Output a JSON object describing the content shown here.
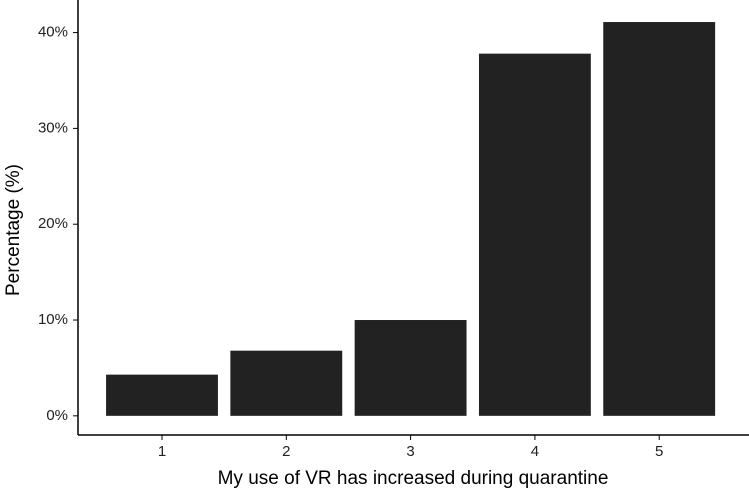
{
  "chart_data": {
    "type": "bar",
    "x_label": "My use of VR has increased during quarantine",
    "y_label": "Percentage (%)",
    "categories": [
      "1",
      "2",
      "3",
      "4",
      "5"
    ],
    "values": [
      4.3,
      6.8,
      10.0,
      37.8,
      41.1
    ],
    "color": "#222222",
    "ylim": [
      -2,
      43.4
    ],
    "yticks": [
      {
        "value": 0,
        "label": "0%"
      },
      {
        "value": 10,
        "label": "10%"
      },
      {
        "value": 20,
        "label": "20%"
      },
      {
        "value": 30,
        "label": "30%"
      },
      {
        "value": 40,
        "label": "40%"
      }
    ],
    "grid": false
  }
}
